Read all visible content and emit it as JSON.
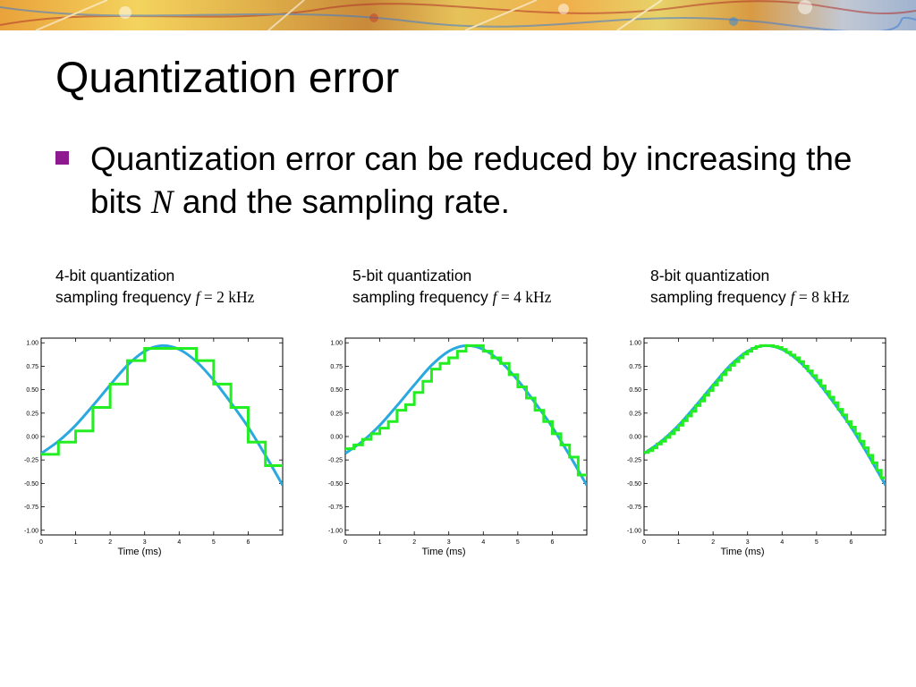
{
  "slide": {
    "title": "Quantization error",
    "bullet": {
      "text_before": "Quantization error can be reduced by increasing the bits ",
      "symbol": "N",
      "text_after": " and the sampling rate.",
      "marker_color": "#8f1a8f"
    }
  },
  "panels": [
    {
      "caption_line1": "4-bit quantization",
      "caption_line2_prefix": "sampling frequency ",
      "freq_symbol": "f",
      "freq_value": "= 2 kHz"
    },
    {
      "caption_line1": "5-bit quantization",
      "caption_line2_prefix": "sampling frequency ",
      "freq_symbol": "f",
      "freq_value": "= 4 kHz"
    },
    {
      "caption_line1": "8-bit quantization",
      "caption_line2_prefix": "sampling frequency ",
      "freq_symbol": "f",
      "freq_value": "= 8 kHz"
    }
  ],
  "chart_data": [
    {
      "type": "line",
      "title": "",
      "xlabel": "Time (ms)",
      "ylabel": "",
      "xlim": [
        0,
        7
      ],
      "ylim": [
        -1.05,
        1.05
      ],
      "x_ticks": [
        "0",
        "1",
        "2",
        "3",
        "4",
        "5",
        "6"
      ],
      "y_ticks": [
        "1.00",
        "0.75",
        "0.50",
        "0.25",
        "0.00",
        "-0.25",
        "-0.50",
        "-0.75",
        "-1.00"
      ],
      "grid": false,
      "series": [
        {
          "style": "smooth",
          "color": "#29a9e0",
          "x": [
            0,
            0.5,
            1,
            1.5,
            2,
            2.5,
            3,
            3.5,
            4,
            4.5,
            5,
            5.5,
            6,
            6.5,
            7
          ],
          "y": [
            -0.18,
            -0.05,
            0.12,
            0.33,
            0.55,
            0.76,
            0.91,
            0.97,
            0.93,
            0.8,
            0.6,
            0.36,
            0.1,
            -0.2,
            -0.52
          ]
        },
        {
          "style": "step",
          "color": "#22ee22",
          "x": [
            0,
            0.5,
            1,
            1.5,
            2,
            2.5,
            3,
            3.5,
            4,
            4.5,
            5,
            5.5,
            6,
            6.5
          ],
          "y": [
            -0.19,
            -0.06,
            0.06,
            0.31,
            0.56,
            0.81,
            0.94,
            0.94,
            0.94,
            0.81,
            0.56,
            0.31,
            -0.06,
            -0.31
          ]
        }
      ]
    },
    {
      "type": "line",
      "title": "",
      "xlabel": "Time (ms)",
      "ylabel": "",
      "xlim": [
        0,
        7
      ],
      "ylim": [
        -1.05,
        1.05
      ],
      "x_ticks": [
        "0",
        "1",
        "2",
        "3",
        "4",
        "5",
        "6"
      ],
      "y_ticks": [
        "1.00",
        "0.75",
        "0.50",
        "0.25",
        "0.00",
        "-0.25",
        "-0.50",
        "-0.75",
        "-1.00"
      ],
      "grid": false,
      "series": [
        {
          "style": "smooth",
          "color": "#29a9e0",
          "x": [
            0,
            0.5,
            1,
            1.5,
            2,
            2.5,
            3,
            3.5,
            4,
            4.5,
            5,
            5.5,
            6,
            6.5,
            7
          ],
          "y": [
            -0.18,
            -0.05,
            0.12,
            0.33,
            0.55,
            0.76,
            0.91,
            0.97,
            0.93,
            0.8,
            0.6,
            0.36,
            0.1,
            -0.2,
            -0.52
          ]
        },
        {
          "style": "step",
          "color": "#22ee22",
          "x": [
            0,
            0.25,
            0.5,
            0.75,
            1,
            1.25,
            1.5,
            1.75,
            2,
            2.25,
            2.5,
            2.75,
            3,
            3.25,
            3.5,
            3.75,
            4,
            4.25,
            4.5,
            4.75,
            5,
            5.25,
            5.5,
            5.75,
            6,
            6.25,
            6.5,
            6.75
          ],
          "y": [
            -0.13,
            -0.09,
            -0.03,
            0.03,
            0.09,
            0.16,
            0.28,
            0.34,
            0.47,
            0.59,
            0.72,
            0.78,
            0.84,
            0.91,
            0.97,
            0.97,
            0.91,
            0.84,
            0.78,
            0.66,
            0.53,
            0.41,
            0.28,
            0.16,
            0.03,
            -0.09,
            -0.22,
            -0.41
          ]
        }
      ]
    },
    {
      "type": "line",
      "title": "",
      "xlabel": "Time (ms)",
      "ylabel": "",
      "xlim": [
        0,
        7
      ],
      "ylim": [
        -1.05,
        1.05
      ],
      "x_ticks": [
        "0",
        "1",
        "2",
        "3",
        "4",
        "5",
        "6"
      ],
      "y_ticks": [
        "1.00",
        "0.75",
        "0.50",
        "0.25",
        "0.00",
        "-0.25",
        "-0.50",
        "-0.75",
        "-1.00"
      ],
      "grid": false,
      "series": [
        {
          "style": "smooth",
          "color": "#29a9e0",
          "x": [
            0,
            0.5,
            1,
            1.5,
            2,
            2.5,
            3,
            3.5,
            4,
            4.5,
            5,
            5.5,
            6,
            6.5,
            7
          ],
          "y": [
            -0.18,
            -0.05,
            0.12,
            0.33,
            0.55,
            0.76,
            0.91,
            0.97,
            0.93,
            0.8,
            0.6,
            0.36,
            0.1,
            -0.2,
            -0.52
          ]
        },
        {
          "style": "step",
          "color": "#22ee22",
          "x": [
            0,
            0.125,
            0.25,
            0.375,
            0.5,
            0.625,
            0.75,
            0.875,
            1,
            1.125,
            1.25,
            1.375,
            1.5,
            1.625,
            1.75,
            1.875,
            2,
            2.125,
            2.25,
            2.375,
            2.5,
            2.625,
            2.75,
            2.875,
            3,
            3.125,
            3.25,
            3.375,
            3.5,
            3.625,
            3.75,
            3.875,
            4,
            4.125,
            4.25,
            4.375,
            4.5,
            4.625,
            4.75,
            4.875,
            5,
            5.125,
            5.25,
            5.375,
            5.5,
            5.625,
            5.75,
            5.875,
            6,
            6.125,
            6.25,
            6.375,
            6.5,
            6.625,
            6.75,
            6.875
          ],
          "y": [
            -0.17,
            -0.15,
            -0.12,
            -0.08,
            -0.05,
            -0.01,
            0.03,
            0.07,
            0.12,
            0.17,
            0.22,
            0.27,
            0.33,
            0.38,
            0.44,
            0.49,
            0.55,
            0.6,
            0.66,
            0.71,
            0.76,
            0.8,
            0.84,
            0.88,
            0.91,
            0.94,
            0.96,
            0.97,
            0.97,
            0.97,
            0.96,
            0.95,
            0.93,
            0.9,
            0.87,
            0.84,
            0.8,
            0.75,
            0.7,
            0.65,
            0.6,
            0.54,
            0.48,
            0.42,
            0.36,
            0.29,
            0.23,
            0.16,
            0.1,
            0.03,
            -0.05,
            -0.12,
            -0.2,
            -0.28,
            -0.36,
            -0.44
          ]
        }
      ]
    }
  ]
}
